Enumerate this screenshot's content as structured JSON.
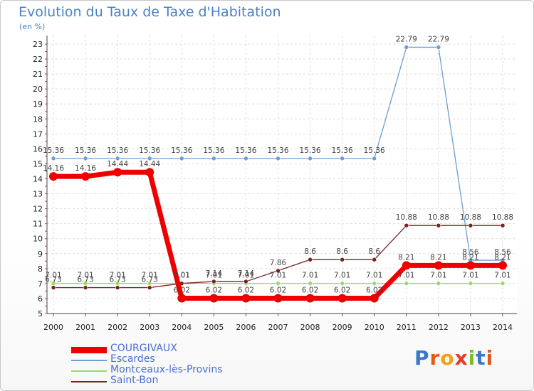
{
  "chart_data": {
    "type": "line",
    "title": "Evolution du Taux de Taxe d'Habitation",
    "subtitle": "(en %)",
    "x": [
      "2000",
      "2001",
      "2002",
      "2003",
      "2004",
      "2005",
      "2006",
      "2007",
      "2008",
      "2009",
      "2010",
      "2011",
      "2012",
      "2013",
      "2014"
    ],
    "ylim": [
      5,
      23
    ],
    "yticks": [
      5,
      6,
      7,
      8,
      9,
      10,
      11,
      12,
      13,
      14,
      15,
      16,
      17,
      18,
      19,
      20,
      21,
      22,
      23
    ],
    "grid": true,
    "legend_placement": "bottom-left",
    "series": [
      {
        "name": "COURGIVAUX",
        "color": "#ee0000",
        "values": [
          14.16,
          14.16,
          14.44,
          14.44,
          6.02,
          6.02,
          6.02,
          6.02,
          6.02,
          6.02,
          6.02,
          8.21,
          8.21,
          8.21,
          8.21
        ],
        "labels": [
          "14.16",
          "14.16",
          "14.44",
          "14.44",
          "6.02",
          "6.02",
          "6.02",
          "6.02",
          "6.02",
          "6.02",
          "6.02",
          "8.21",
          "8.21",
          "8.21",
          "8.21"
        ]
      },
      {
        "name": "Escardes",
        "color": "#6a9fd4",
        "values": [
          15.36,
          15.36,
          15.36,
          15.36,
          15.36,
          15.36,
          15.36,
          15.36,
          15.36,
          15.36,
          15.36,
          22.79,
          22.79,
          8.56,
          8.56
        ],
        "labels": [
          "15.36",
          "15.36",
          "15.36",
          "15.36",
          "15.36",
          "15.36",
          "15.36",
          "15.36",
          "15.36",
          "15.36",
          "15.36",
          "22.79",
          "22.79",
          "8.56",
          "8.56"
        ]
      },
      {
        "name": "Montceaux-lès-Provins",
        "color": "#99dd66",
        "values": [
          7.01,
          7.01,
          7.01,
          7.01,
          7.01,
          7.01,
          7.01,
          7.01,
          7.01,
          7.01,
          7.01,
          7.01,
          7.01,
          7.01,
          7.01
        ],
        "labels": [
          "7.01",
          "7.01",
          "7.01",
          "7.01",
          "7.01",
          "7.01",
          "7.01",
          "7.01",
          "7.01",
          "7.01",
          "7.01",
          "7.01",
          "7.01",
          "7.01",
          "7.01"
        ]
      },
      {
        "name": "Saint-Bon",
        "color": "#7a2222",
        "values": [
          6.73,
          6.73,
          6.73,
          6.73,
          7.01,
          7.14,
          7.14,
          7.86,
          8.6,
          8.6,
          8.6,
          10.88,
          10.88,
          10.88,
          10.88
        ],
        "labels": [
          "6.73",
          "6.73",
          "6.73",
          "6.73",
          "7.01",
          "7.14",
          "7.14",
          "7.86",
          "8.6",
          "8.6",
          "8.6",
          "10.88",
          "10.88",
          "10.88",
          "10.88"
        ]
      }
    ]
  },
  "branding": {
    "logo_text": "Proxiti"
  }
}
